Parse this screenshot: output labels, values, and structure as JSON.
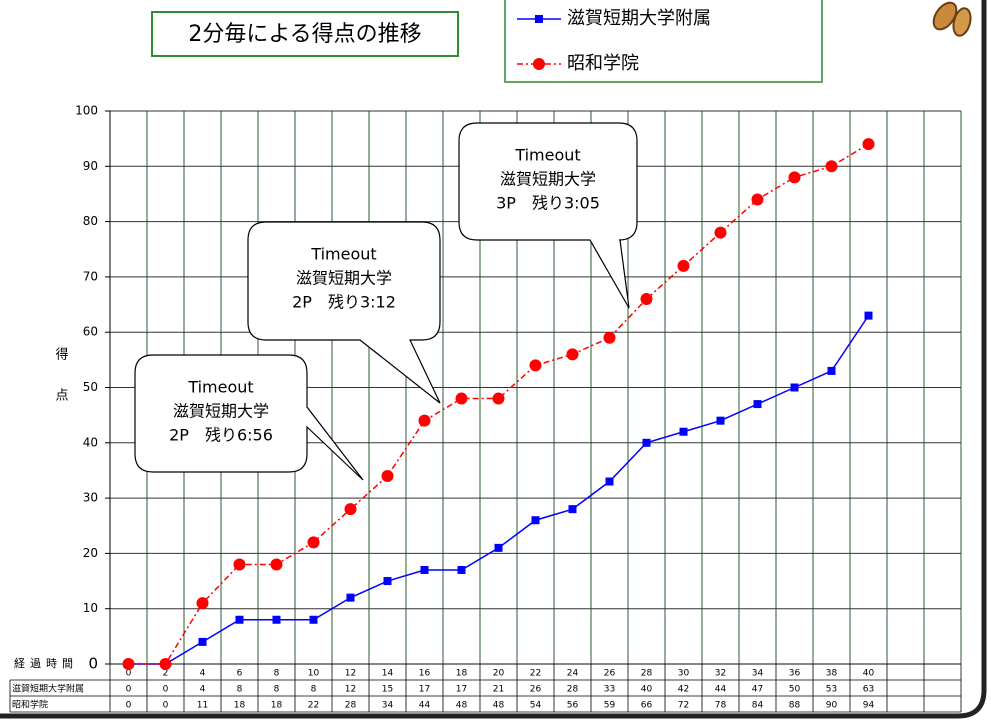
{
  "chart_data": {
    "type": "line",
    "title": "2分毎による得点の推移",
    "y_label": "得点",
    "x_label": "経過時間",
    "categories": [
      "0",
      "2",
      "4",
      "6",
      "8",
      "10",
      "12",
      "14",
      "16",
      "18",
      "20",
      "22",
      "24",
      "26",
      "28",
      "30",
      "32",
      "34",
      "36",
      "38",
      "40",
      null,
      null
    ],
    "series": [
      {
        "name": "滋賀短期大学附属",
        "color": "#0000ff",
        "marker": "square",
        "values": [
          0,
          0,
          4,
          8,
          8,
          8,
          12,
          15,
          17,
          17,
          21,
          26,
          28,
          33,
          40,
          42,
          44,
          47,
          50,
          53,
          63,
          null,
          null
        ]
      },
      {
        "name": "昭和学院",
        "color": "#ff0000",
        "marker": "circle",
        "values": [
          0,
          0,
          11,
          18,
          18,
          22,
          28,
          34,
          44,
          48,
          48,
          54,
          56,
          59,
          66,
          72,
          78,
          84,
          88,
          90,
          94,
          null,
          null
        ]
      }
    ],
    "ylim": [
      0,
      100
    ],
    "yticks": [
      0,
      10,
      20,
      30,
      40,
      50,
      60,
      70,
      80,
      90,
      100
    ],
    "grid": true,
    "annotations": [
      [
        "Timeout",
        "滋賀短期大学",
        "2P　残り6:56"
      ],
      [
        "Timeout",
        "滋賀短期大学",
        "2P　残り3:12"
      ],
      [
        "Timeout",
        "滋賀短期大学",
        "3P　残り3:05"
      ]
    ]
  }
}
